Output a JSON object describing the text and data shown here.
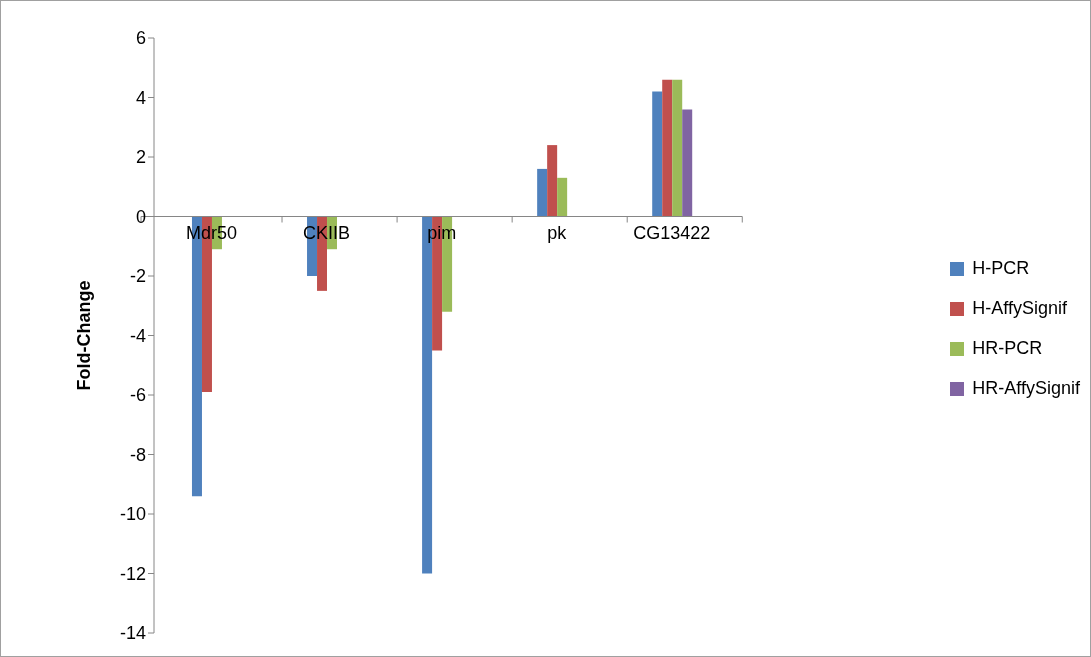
{
  "chart_data": {
    "type": "bar",
    "ylabel": "Fold-Change",
    "categories": [
      "Mdr50",
      "CKIIB",
      "pim",
      "pk",
      "CG13422"
    ],
    "series": [
      {
        "name": "H-PCR",
        "color": "#4f81bd",
        "values": [
          -9.4,
          -2.0,
          -12.0,
          1.6,
          4.2
        ]
      },
      {
        "name": "H-AffySignif",
        "color": "#c0504d",
        "values": [
          -5.9,
          -2.5,
          -4.5,
          2.4,
          4.6
        ]
      },
      {
        "name": "HR-PCR",
        "color": "#9bbb59",
        "values": [
          -1.1,
          -1.1,
          -3.2,
          1.3,
          4.6
        ]
      },
      {
        "name": "HR-AffySignif",
        "color": "#8064a2",
        "values": [
          null,
          null,
          null,
          null,
          3.6
        ]
      }
    ],
    "ylim": [
      -14,
      6
    ],
    "yticks": [
      -14,
      -12,
      -10,
      -8,
      -6,
      -4,
      -2,
      0,
      2,
      4,
      6
    ],
    "grid": false,
    "legend": "right"
  }
}
